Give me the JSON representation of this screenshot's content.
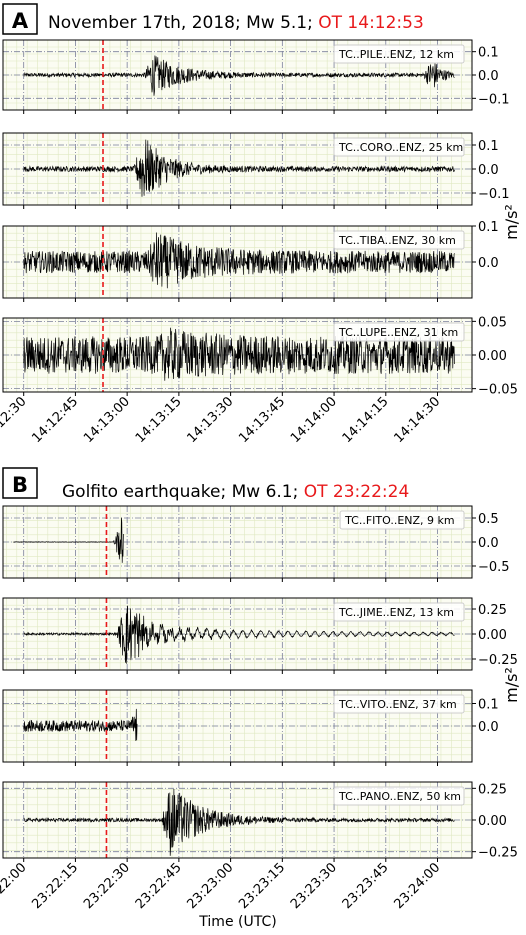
{
  "figure": {
    "panels": [
      {
        "letter": "A",
        "title_prefix": "November 17th, 2018; Mw 5.1; ",
        "title_ot": "OT 14:12:53"
      },
      {
        "letter": "B",
        "title_prefix": "Golfito earthquake; Mw 6.1; ",
        "title_ot": "OT 23:22:24"
      }
    ],
    "y_unit_label": "m/s²",
    "x_axis_label": "Time (UTC)",
    "colors": {
      "trace": "#000000",
      "origin_line": "#e8191b",
      "ot_text": "#e8191b",
      "plot_bg": "#fbfcf2",
      "grid_minor": "#dfe8c2",
      "grid_major": "#7a7f9a"
    }
  },
  "chart_data": [
    {
      "type": "line",
      "panel": "A",
      "x_ticks": [
        "14:12:30",
        "14:12:45",
        "14:13:00",
        "14:13:15",
        "14:13:30",
        "14:13:45",
        "14:14:00",
        "14:14:15",
        "14:14:30"
      ],
      "x_range_s": [
        -6,
        130
      ],
      "origin_time_s": 23,
      "series": [
        {
          "name": "TC..PILE..ENZ, 12 km",
          "ylim": [
            -0.15,
            0.15
          ],
          "ticks": [
            0.1,
            0.0,
            -0.1
          ],
          "tick_labels": [
            "0.1",
            "0.0",
            "−0.1"
          ],
          "start_s": 0,
          "end_s": 125,
          "noise": 0.006,
          "events": [
            {
              "t": 36,
              "amp": 0.06,
              "dur": 20
            },
            {
              "t": 117,
              "amp": 0.05,
              "dur": 6
            }
          ]
        },
        {
          "name": "TC..CORO..ENZ, 25 km",
          "ylim": [
            -0.15,
            0.15
          ],
          "ticks": [
            0.1,
            0.0,
            -0.1
          ],
          "tick_labels": [
            "0.1",
            "0.0",
            "−0.1"
          ],
          "start_s": 0,
          "end_s": 125,
          "noise": 0.008,
          "events": [
            {
              "t": 33,
              "amp": 0.1,
              "dur": 16
            }
          ]
        },
        {
          "name": "TC..TIBA..ENZ, 30 km",
          "ylim": [
            -0.1,
            0.1
          ],
          "ticks": [
            0.1,
            0.0
          ],
          "tick_labels": [
            "0.1",
            "0.0"
          ],
          "start_s": 0,
          "end_s": 125,
          "noise": 0.022,
          "events": [
            {
              "t": 37,
              "amp": 0.04,
              "dur": 28
            }
          ]
        },
        {
          "name": "TC..LUPE..ENZ, 31 km",
          "ylim": [
            -0.055,
            0.055
          ],
          "ticks": [
            0.05,
            0.0,
            -0.05
          ],
          "tick_labels": [
            "0.05",
            "0.00",
            "−0.05"
          ],
          "start_s": 0,
          "end_s": 125,
          "noise": 0.02,
          "events": [
            {
              "t": 40,
              "amp": 0.01,
              "dur": 30
            }
          ]
        }
      ]
    },
    {
      "type": "line",
      "panel": "B",
      "x_ticks": [
        "23:22:00",
        "23:22:15",
        "23:22:30",
        "23:22:45",
        "23:23:00",
        "23:23:15",
        "23:23:30",
        "23:23:45",
        "23:24:00"
      ],
      "x_range_s": [
        -6,
        130
      ],
      "origin_time_s": 24,
      "series": [
        {
          "name": "TC..FITO..ENZ, 9 km",
          "ylim": [
            -0.75,
            0.75
          ],
          "ticks": [
            0.5,
            0.0,
            -0.5
          ],
          "tick_labels": [
            "0.5",
            "0.0",
            "−0.5"
          ],
          "start_s": -3,
          "end_s": 29,
          "noise": 0.004,
          "events": [
            {
              "t": 27,
              "amp": 0.4,
              "dur": 2
            }
          ]
        },
        {
          "name": "TC..JIME..ENZ, 13 km",
          "ylim": [
            -0.36,
            0.36
          ],
          "ticks": [
            0.25,
            0.0,
            -0.25
          ],
          "tick_labels": [
            "0.25",
            "0.00",
            "−0.25"
          ],
          "start_s": 0,
          "end_s": 125,
          "noise": 0.008,
          "events": [
            {
              "t": 28,
              "amp": 0.24,
              "dur": 26
            }
          ],
          "tail_amp": 0.05
        },
        {
          "name": "TC..VITO..ENZ, 37 km",
          "ylim": [
            -0.16,
            0.16
          ],
          "ticks": [
            0.1,
            0.0
          ],
          "tick_labels": [
            "0.1",
            "0.0"
          ],
          "start_s": 0,
          "end_s": 33,
          "noise": 0.018,
          "events": [
            {
              "t": 32,
              "amp": 0.07,
              "dur": 2
            }
          ]
        },
        {
          "name": "TC..PANO..ENZ, 50 km",
          "ylim": [
            -0.3,
            0.3
          ],
          "ticks": [
            0.25,
            0.0,
            -0.25
          ],
          "tick_labels": [
            "0.25",
            "0.00",
            "−0.25"
          ],
          "start_s": 0,
          "end_s": 125,
          "noise": 0.01,
          "events": [
            {
              "t": 41,
              "amp": 0.2,
              "dur": 22
            }
          ]
        }
      ]
    }
  ]
}
